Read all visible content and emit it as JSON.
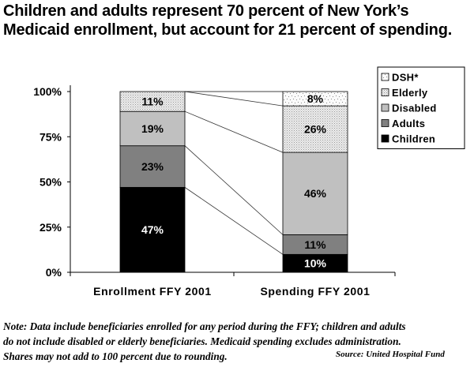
{
  "title_lines": [
    "Children and adults represent 70 percent of New York’s",
    "Medicaid enrollment, but account for 21 percent of spending."
  ],
  "chart_data": {
    "type": "bar",
    "stacked": true,
    "normalized": true,
    "title": "Children and adults represent 70 percent of New York’s Medicaid enrollment, but account for 21 percent of spending.",
    "categories": [
      "Enrollment FFY 2001",
      "Spending FFY 2001"
    ],
    "series": [
      {
        "name": "Children",
        "values": [
          47,
          10
        ],
        "color": "#000000",
        "label_color": "#ffffff",
        "pattern": "solid"
      },
      {
        "name": "Adults",
        "values": [
          23,
          11
        ],
        "color": "#808080",
        "label_color": "#000000",
        "pattern": "solid"
      },
      {
        "name": "Disabled",
        "values": [
          19,
          46
        ],
        "color": "#c0c0c0",
        "label_color": "#000000",
        "pattern": "solid"
      },
      {
        "name": "Elderly",
        "values": [
          11,
          26
        ],
        "color": "#e6e6e6",
        "label_color": "#000000",
        "pattern": "fine-dots"
      },
      {
        "name": "DSH*",
        "values": [
          0,
          8
        ],
        "color": "#f4f4f4",
        "label_color": "#000000",
        "pattern": "sparse-dots"
      }
    ],
    "data_labels": [
      [
        "47%",
        "23%",
        "19%",
        "11%",
        ""
      ],
      [
        "10%",
        "11%",
        "46%",
        "26%",
        "8%"
      ]
    ],
    "yticks": [
      "0%",
      "25%",
      "50%",
      "75%",
      "100%"
    ],
    "ytick_values": [
      0,
      25,
      50,
      75,
      100
    ],
    "ylim": [
      0,
      100
    ],
    "xlabel": "",
    "ylabel": "",
    "grid": false,
    "series_lines": true,
    "legend": {
      "placement": "top-right",
      "order": [
        "DSH*",
        "Elderly",
        "Disabled",
        "Adults",
        "Children"
      ]
    }
  },
  "note_lines": [
    "Note:  Data include beneficiaries enrolled for any period during the FFY; children and adults",
    "do not include disabled or elderly beneficiaries. Medicaid spending excludes administration.",
    "Shares may not add to 100 percent due to rounding."
  ],
  "source": "Source:  United Hospital Fund"
}
